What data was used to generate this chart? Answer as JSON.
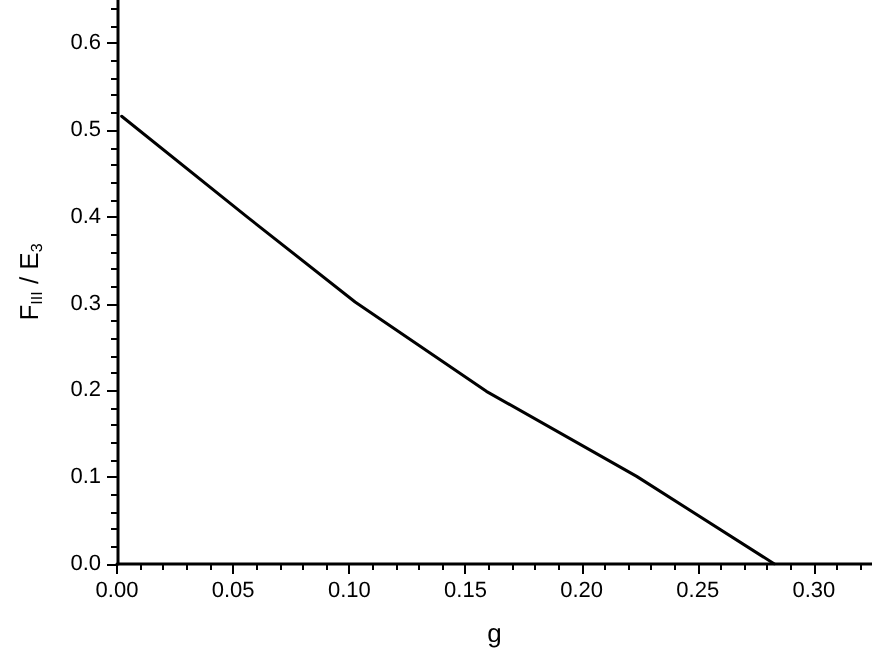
{
  "chart_data": {
    "type": "line",
    "xlabel": "g",
    "ylabel": "F$_{III}$ / E$_{3}$",
    "x": [
      0.002,
      0.056,
      0.1025,
      0.159,
      0.2237,
      0.283
    ],
    "series": [
      {
        "color": "#000000",
        "values": [
          0.516,
          0.4,
          0.302,
          0.199,
          0.101,
          0
        ]
      }
    ],
    "xlim": [
      0,
      0.325
    ],
    "ylim": [
      0,
      0.65
    ],
    "xticks": [
      {
        "value": 0,
        "label": "0.00"
      },
      {
        "value": 0.05,
        "label": "0.05"
      },
      {
        "value": 0.1,
        "label": "0.10"
      },
      {
        "value": 0.15,
        "label": "0.15"
      },
      {
        "value": 0.2,
        "label": "0.20"
      },
      {
        "value": 0.25,
        "label": "0.25"
      },
      {
        "value": 0.3,
        "label": "0.30"
      }
    ],
    "yticks": [
      {
        "value": 0,
        "label": "0.0"
      },
      {
        "value": 0.1,
        "label": "0.1"
      },
      {
        "value": 0.2,
        "label": "0.2"
      },
      {
        "value": 0.3,
        "label": "0.3"
      },
      {
        "value": 0.4,
        "label": "0.4"
      },
      {
        "value": 0.5,
        "label": "0.5"
      },
      {
        "value": 0.6,
        "label": "0.6"
      }
    ],
    "grid": false,
    "marker": "none",
    "line_style": "solid"
  }
}
